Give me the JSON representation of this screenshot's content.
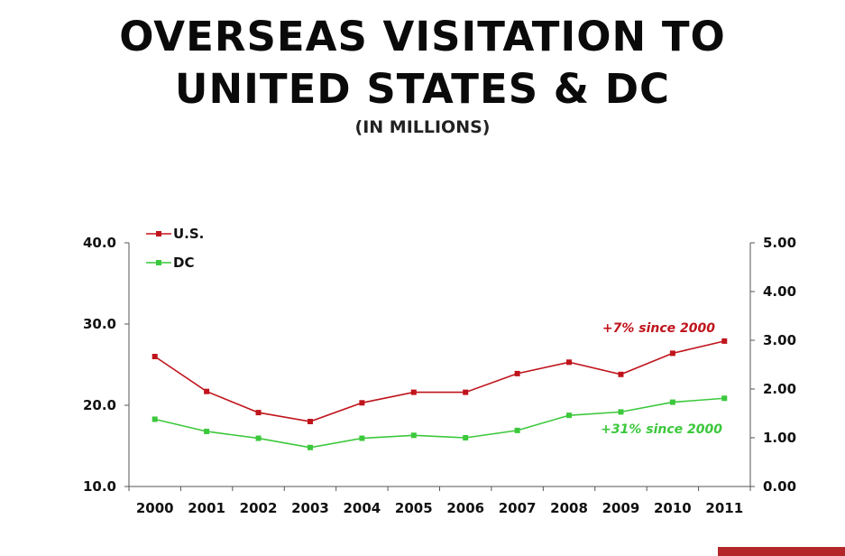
{
  "chart_data": {
    "type": "line",
    "title_lines": [
      "OVERSEAS VISITATION TO",
      "UNITED STATES & DC"
    ],
    "subtitle": "(IN MILLIONS)",
    "categories": [
      "2000",
      "2001",
      "2002",
      "2003",
      "2004",
      "2005",
      "2006",
      "2007",
      "2008",
      "2009",
      "2010",
      "2011"
    ],
    "left_axis": {
      "ticks": [
        "40.0",
        "30.0",
        "20.0",
        "10.0"
      ],
      "ylim": [
        10,
        40
      ]
    },
    "right_axis": {
      "ticks": [
        "5.00",
        "4.00",
        "3.00",
        "2.00",
        "1.00",
        "0.00"
      ],
      "ylim": [
        0,
        5
      ]
    },
    "series": [
      {
        "name": "U.S.",
        "axis": "left",
        "color": "#c0141c",
        "values": [
          26.0,
          21.7,
          19.1,
          18.0,
          20.3,
          21.6,
          21.6,
          23.9,
          25.3,
          23.8,
          26.4,
          27.9
        ]
      },
      {
        "name": "DC",
        "axis": "right",
        "color": "#3cc83c",
        "values": [
          1.38,
          1.13,
          0.99,
          0.8,
          0.99,
          1.05,
          1.0,
          1.15,
          1.46,
          1.53,
          1.73,
          1.81
        ]
      }
    ],
    "annotations": [
      {
        "text": "+7% since 2000",
        "series": "U.S.",
        "color": "#c0141c"
      },
      {
        "text": "+31% since 2000",
        "series": "DC",
        "color": "#3cc83c"
      }
    ],
    "legend_position": "top-left",
    "grid": false
  }
}
